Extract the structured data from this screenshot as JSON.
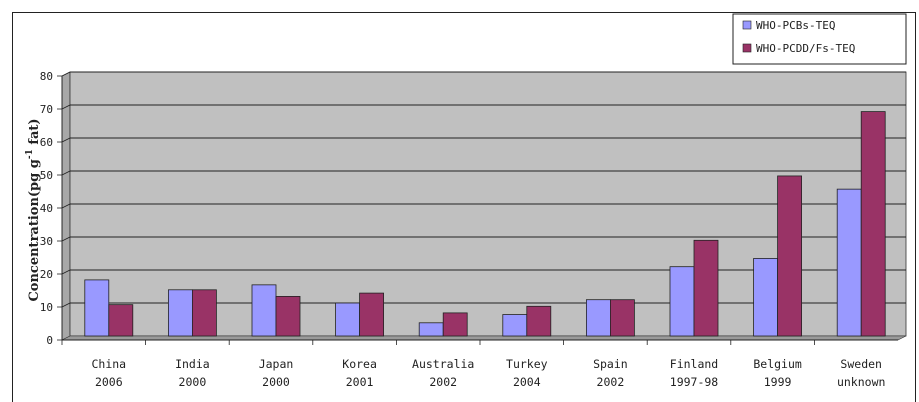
{
  "chart_data": {
    "type": "bar",
    "categories": [
      [
        "China",
        "2006"
      ],
      [
        "India",
        "2000"
      ],
      [
        "Japan",
        "2000"
      ],
      [
        "Korea",
        "2001"
      ],
      [
        "Australia",
        "2002"
      ],
      [
        "Turkey",
        "2004"
      ],
      [
        "Spain",
        "2002"
      ],
      [
        "Finland",
        "1997-98"
      ],
      [
        "Belgium",
        "1999"
      ],
      [
        "Sweden",
        "unknown"
      ]
    ],
    "series": [
      {
        "name": "WHO-PCBs-TEQ",
        "color": "#9999ff",
        "values": [
          17,
          14,
          15.5,
          10,
          4,
          6.5,
          11,
          21,
          23.5,
          44.5
        ]
      },
      {
        "name": "WHO-PCDD/Fs-TEQ",
        "color": "#993366",
        "values": [
          9.5,
          14,
          12,
          13,
          7,
          9,
          11,
          29,
          48.5,
          68
        ]
      }
    ],
    "ylabel_parts": [
      "Concentration(pg g",
      "-1",
      " fat)"
    ],
    "yticks": [
      0,
      10,
      20,
      30,
      40,
      50,
      60,
      70,
      80
    ],
    "ylim": [
      0,
      80
    ],
    "grid": true,
    "legend_position": "top-right",
    "plot_background": "#c0c0c0"
  }
}
